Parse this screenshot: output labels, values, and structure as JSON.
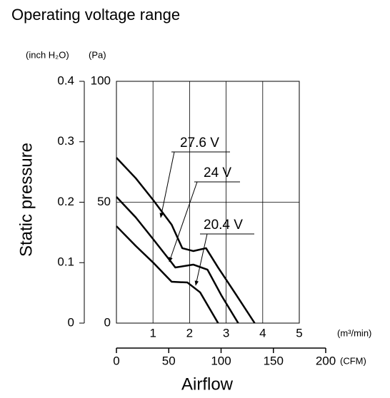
{
  "chart_data": {
    "type": "line",
    "title": "Operating voltage range",
    "ylabel": "Static pressure",
    "xlabel": "Airflow",
    "yunit": "(Pa)",
    "y2unit": "(inch H₂O)",
    "xunit": "(m³/min)",
    "x2unit": "(CFM)",
    "xlim": [
      0,
      5
    ],
    "xticks": [
      1,
      2,
      3,
      4,
      5
    ],
    "x2lim": [
      0,
      200
    ],
    "x2ticks": [
      0,
      50,
      100,
      150,
      200
    ],
    "ylim": [
      0,
      100
    ],
    "yticks": [
      0,
      50,
      100
    ],
    "y2lim": [
      0,
      0.4
    ],
    "y2ticks": [
      0,
      0.1,
      0.2,
      0.3,
      0.4
    ],
    "grid": true,
    "series": [
      {
        "name": "27.6 V",
        "color": "#000000",
        "x": [
          0,
          0.53,
          1.0,
          1.51,
          1.8,
          2.1,
          2.45,
          2.78,
          3.27,
          3.78
        ],
        "values": [
          68.4,
          59.9,
          51.0,
          40.7,
          31.0,
          29.8,
          31.0,
          23.0,
          11.8,
          0
        ]
      },
      {
        "name": "24 V",
        "color": "#000000",
        "x": [
          0,
          0.53,
          1.0,
          1.51,
          1.61,
          2.1,
          2.49,
          2.88,
          3.33
        ],
        "values": [
          52.2,
          43.7,
          34.8,
          25.0,
          23.0,
          24.2,
          22.1,
          11.2,
          0
        ]
      },
      {
        "name": "20.4 V",
        "color": "#000000",
        "x": [
          0,
          0.53,
          1.0,
          1.51,
          1.94,
          2.29,
          2.78
        ],
        "values": [
          40.1,
          31.9,
          25.1,
          17.1,
          16.8,
          12.7,
          0
        ]
      }
    ]
  }
}
